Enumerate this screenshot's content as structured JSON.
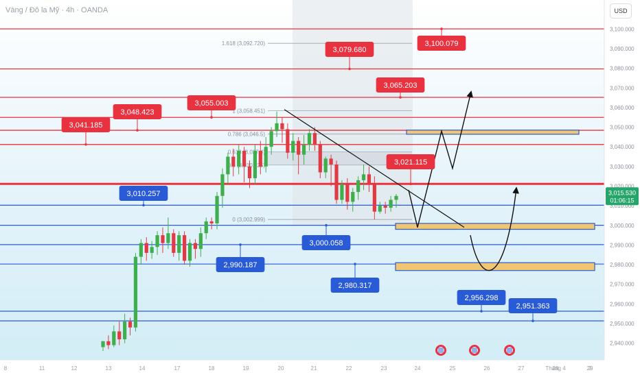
{
  "header": {
    "title": "Vàng / Đô la Mỹ · 4h · OANDA",
    "currency": "USD"
  },
  "colors": {
    "up": "#3fae4d",
    "down": "#e03a45",
    "resistance": "#e8323f",
    "support": "#2a5bd7",
    "zone": "#f0c672",
    "last_price_tag": "#26a56b"
  },
  "chart_data": {
    "type": "candlestick",
    "ylim": [
      2935,
      3105
    ],
    "y_ticks": [
      "3,100.000",
      "3,090.000",
      "3,080.000",
      "3,070.000",
      "3,060.000",
      "3,050.000",
      "3,040.000",
      "3,030.000",
      "3,020.000",
      "3,010.000",
      "3,000.000",
      "2,990.000",
      "2,980.000",
      "2,970.000",
      "2,960.000",
      "2,950.000",
      "2,940.000"
    ],
    "x_ticks": [
      "8",
      "11",
      "12",
      "13",
      "14",
      "17",
      "18",
      "19",
      "20",
      "21",
      "22",
      "23",
      "24",
      "25",
      "26",
      "27",
      "28",
      "29",
      "Tháng 4",
      "2"
    ],
    "last_price": "3,015.530",
    "countdown": "01:06:15",
    "candles": [
      [
        2938,
        2941,
        2936,
        2941
      ],
      [
        2941,
        2939,
        2937,
        2944
      ],
      [
        2939,
        2946,
        2938,
        2949
      ],
      [
        2946,
        2942,
        2939,
        2951
      ],
      [
        2942,
        2951,
        2940,
        2955
      ],
      [
        2951,
        2948,
        2944,
        2953
      ],
      [
        2948,
        2984,
        2946,
        2986
      ],
      [
        2984,
        2991,
        2980,
        2993
      ],
      [
        2991,
        2986,
        2982,
        2994
      ],
      [
        2986,
        2989,
        2983,
        2992
      ],
      [
        2989,
        2995,
        2985,
        2997
      ],
      [
        2995,
        2991,
        2986,
        2999
      ],
      [
        2991,
        2996,
        2988,
        3004
      ],
      [
        2996,
        2986,
        2984,
        2998
      ],
      [
        2986,
        2995,
        2982,
        2997
      ],
      [
        2995,
        2982,
        2980,
        2997
      ],
      [
        2982,
        2991,
        2979,
        2993
      ],
      [
        2991,
        2988,
        2983,
        2993
      ],
      [
        2988,
        2996,
        2984,
        2999
      ],
      [
        2996,
        3002,
        2993,
        3004
      ],
      [
        3002,
        3001,
        2998,
        3004
      ],
      [
        3001,
        3015,
        2998,
        3017
      ],
      [
        3015,
        3026,
        3009,
        3029
      ],
      [
        3026,
        3035,
        3021,
        3037
      ],
      [
        3035,
        3030,
        3025,
        3039
      ],
      [
        3030,
        3038,
        3026,
        3041
      ],
      [
        3038,
        3030,
        3022,
        3040
      ],
      [
        3030,
        3024,
        3019,
        3033
      ],
      [
        3024,
        3038,
        3021,
        3041
      ],
      [
        3038,
        3030,
        3026,
        3043
      ],
      [
        3030,
        3040,
        3027,
        3045
      ],
      [
        3040,
        3048,
        3036,
        3050
      ],
      [
        3048,
        3052,
        3045,
        3058
      ],
      [
        3052,
        3049,
        3042,
        3055
      ],
      [
        3049,
        3037,
        3034,
        3052
      ],
      [
        3037,
        3043,
        3033,
        3047
      ],
      [
        3043,
        3036,
        3026,
        3045
      ],
      [
        3036,
        3041,
        3031,
        3046
      ],
      [
        3041,
        3047,
        3038,
        3049
      ],
      [
        3047,
        3041,
        3038,
        3050
      ],
      [
        3041,
        3027,
        3024,
        3043
      ],
      [
        3027,
        3034,
        3024,
        3035
      ],
      [
        3034,
        3031,
        3020,
        3036
      ],
      [
        3031,
        3013,
        3011,
        3033
      ],
      [
        3013,
        3021,
        3011,
        3023
      ],
      [
        3021,
        3012,
        3008,
        3024
      ],
      [
        3012,
        3017,
        3007,
        3019
      ],
      [
        3017,
        3023,
        3013,
        3025
      ],
      [
        3023,
        3026,
        3018,
        3031
      ],
      [
        3026,
        3021,
        3017,
        3030
      ],
      [
        3021,
        3007,
        3003,
        3025
      ],
      [
        3007,
        3010,
        3006,
        3012
      ],
      [
        3010,
        3009,
        3006,
        3012
      ],
      [
        3009,
        3013,
        3007,
        3015
      ],
      [
        3013,
        3015,
        3009,
        3016
      ]
    ],
    "resistance_levels": [
      3100.079,
      3079.68,
      3065.203,
      3055.003,
      3048.423,
      3041.185,
      3021.115
    ],
    "support_levels": [
      3010.257,
      3000.058,
      2990.187,
      2980.317,
      2956.298,
      2951.363
    ],
    "fib_labels": [
      "1.618 (3,092.720)",
      "1 (3,058.451)",
      "0.786 (3,046.5)",
      "0.618 (3,037.4)",
      "0.5 (3,030.725)",
      "0 (3,002.999)"
    ],
    "fib_values": [
      3092.72,
      3058.451,
      3046.5,
      3037.4,
      3030.725,
      3002.999
    ],
    "red_callouts": [
      "3,100.079",
      "3,079.680",
      "3,065.203",
      "3,055.003",
      "3,048.423",
      "3,041.185",
      "3,021.115"
    ],
    "red_callout_values": [
      3100.079,
      3079.68,
      3065.203,
      3055.003,
      3048.423,
      3041.185,
      3021.115
    ],
    "blue_callouts": [
      "3,010.257",
      "3,000.058",
      "2,990.187",
      "2,980.317",
      "2,956.298",
      "2,951.363"
    ],
    "blue_callout_values": [
      3010.257,
      3000.058,
      2990.187,
      2980.317,
      2956.298,
      2951.363
    ],
    "zones": [
      [
        3048.5,
        3046.5
      ],
      [
        3001,
        2998
      ],
      [
        2981,
        2977
      ]
    ]
  }
}
